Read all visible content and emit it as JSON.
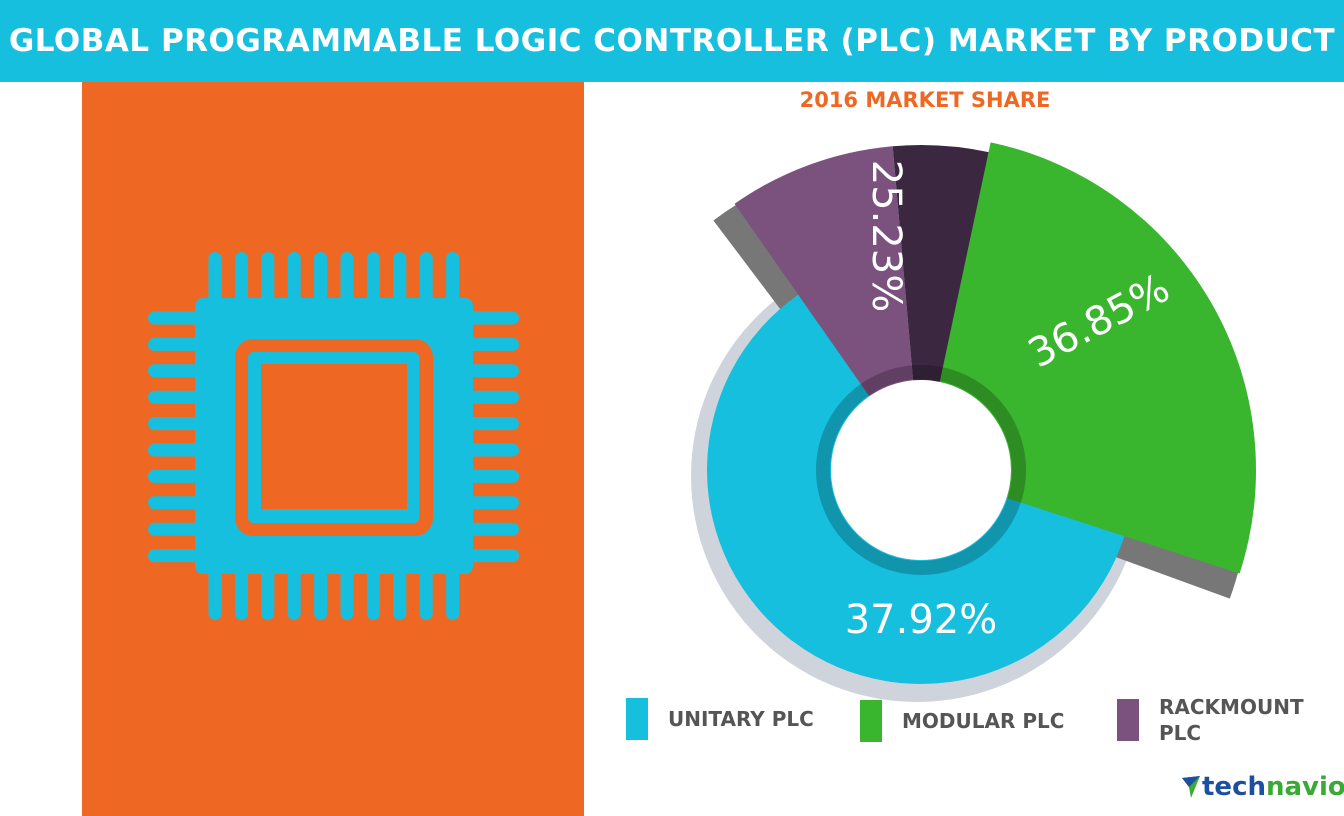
{
  "header": {
    "title": "GLOBAL PROGRAMMABLE LOGIC CONTROLLER (PLC) MARKET BY PRODUCT"
  },
  "chart_data": {
    "type": "pie",
    "title": "2016 MARKET SHARE",
    "categories": [
      "UNITARY PLC",
      "MODULAR PLC",
      "RACKMOUNT PLC"
    ],
    "values": [
      37.92,
      36.85,
      25.23
    ],
    "labels": [
      "37.92%",
      "36.85%",
      "25.23%"
    ],
    "colors": [
      "#17bfde",
      "#3ab52e",
      "#7b517e"
    ],
    "legend_position": "bottom"
  },
  "legend": [
    {
      "label": "UNITARY PLC"
    },
    {
      "label": "MODULAR PLC"
    },
    {
      "label": "RACKMOUNT",
      "label2": "PLC"
    }
  ],
  "logo": {
    "part1": "tech",
    "part2": "navio"
  },
  "icon": "microchip-icon"
}
